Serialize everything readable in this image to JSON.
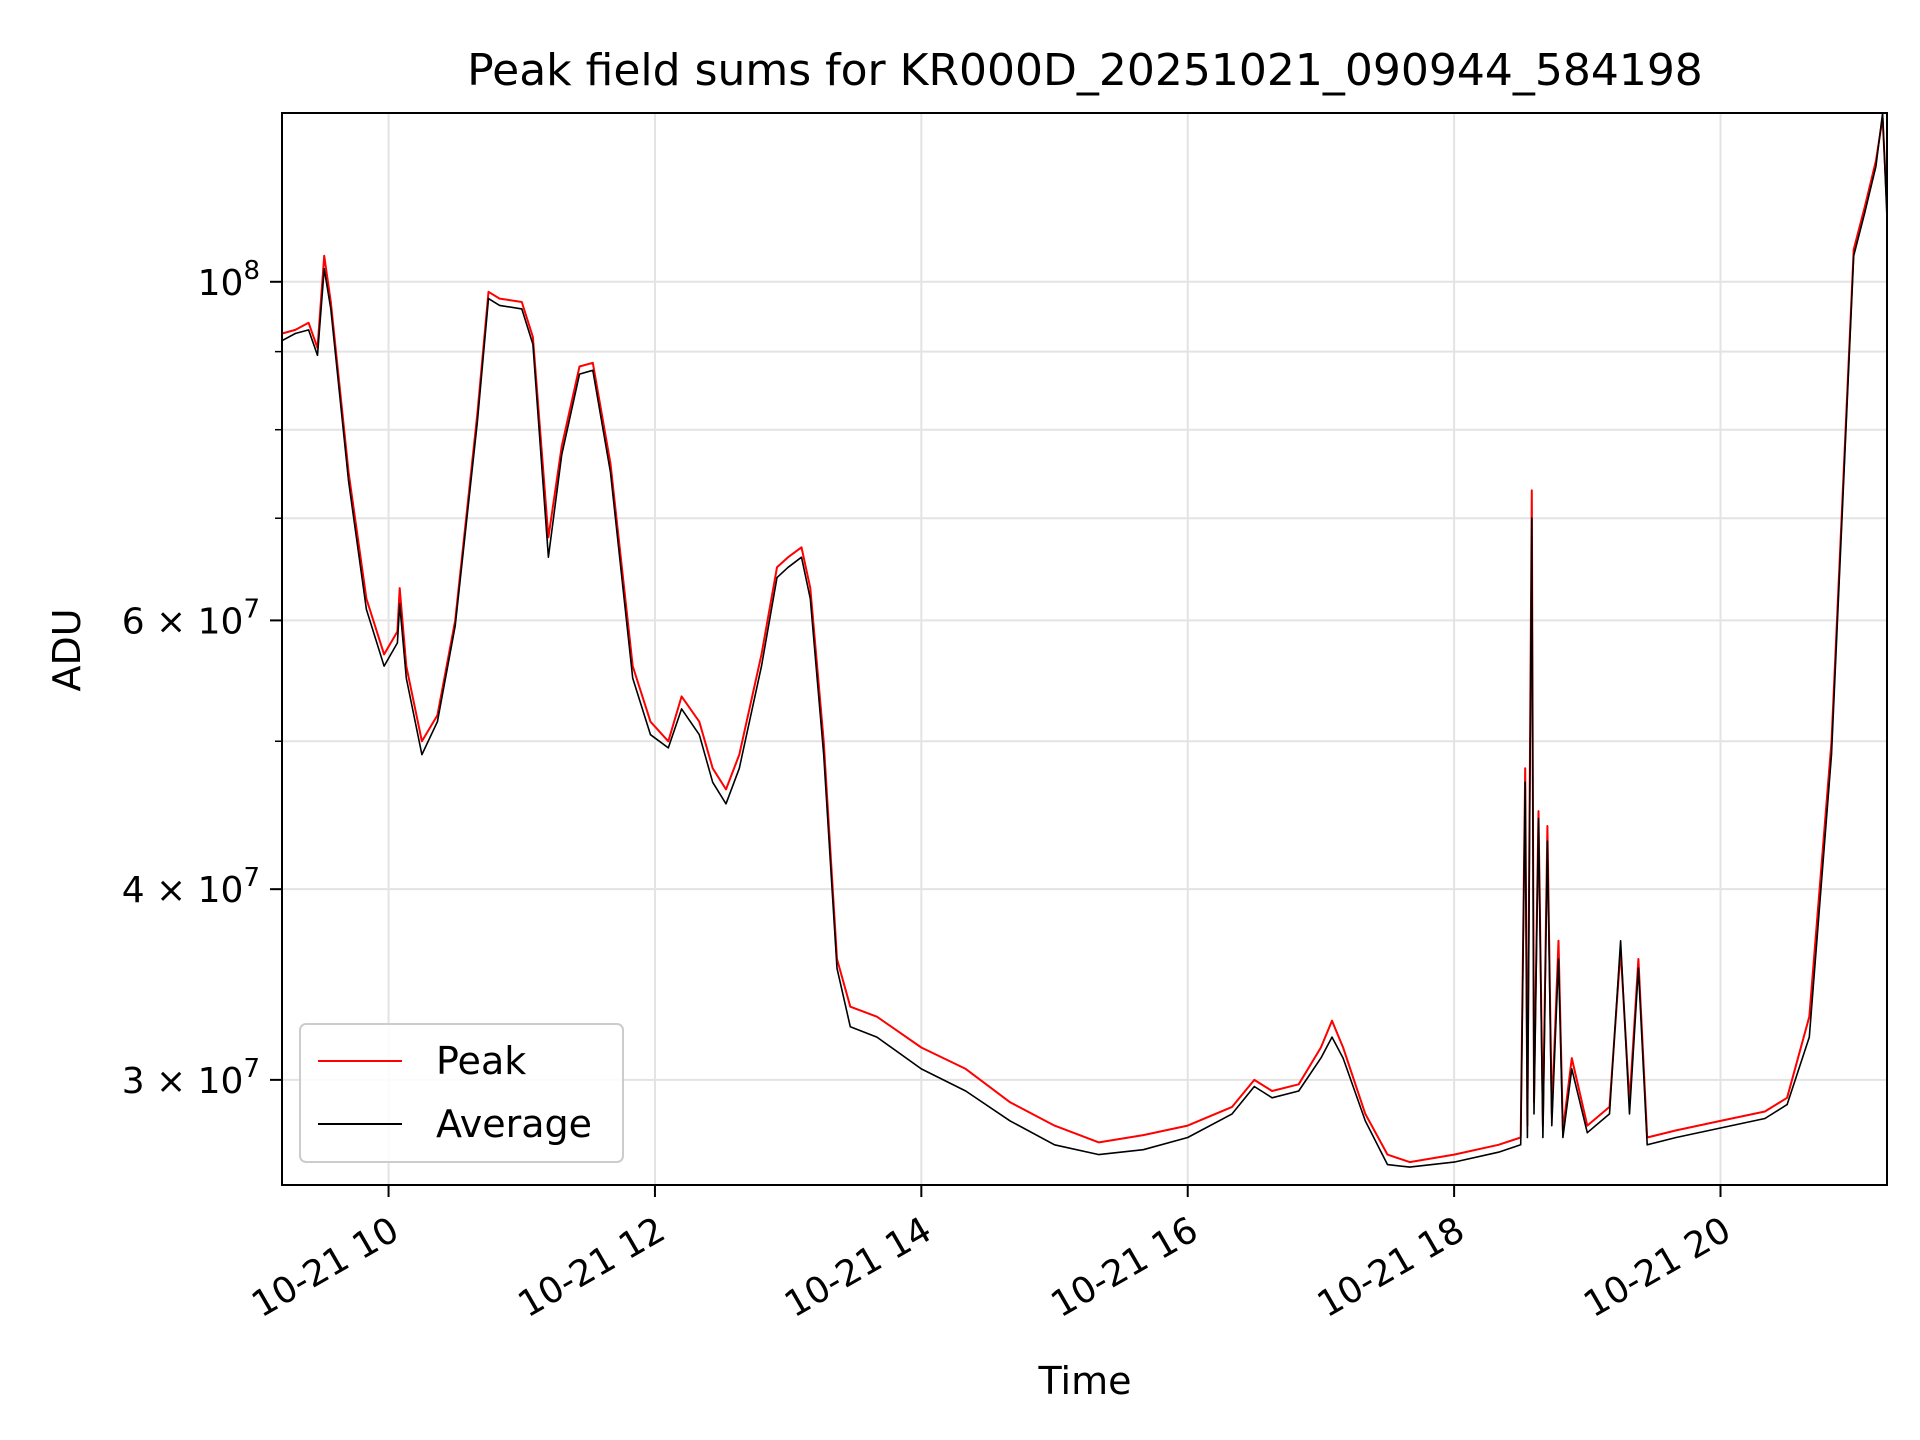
{
  "chart_data": {
    "type": "line",
    "title": "Peak field sums for KR000D_20251021_090944_584198",
    "xlabel": "Time",
    "ylabel": "ADU",
    "x_is_time": true,
    "xlim": [
      "2025-10-21T09:12",
      "2025-10-21T21:15"
    ],
    "ylim": [
      25600000,
      129000000
    ],
    "yscale": "log",
    "grid": true,
    "legend_position": "lower-left",
    "x_ticks": [
      {
        "value": "2025-10-21T10:00",
        "label": "10-21 10"
      },
      {
        "value": "2025-10-21T12:00",
        "label": "10-21 12"
      },
      {
        "value": "2025-10-21T14:00",
        "label": "10-21 14"
      },
      {
        "value": "2025-10-21T16:00",
        "label": "10-21 16"
      },
      {
        "value": "2025-10-21T18:00",
        "label": "10-21 18"
      },
      {
        "value": "2025-10-21T20:00",
        "label": "10-21 20"
      }
    ],
    "y_major_ticks": [
      {
        "value": 30000000,
        "base": "3",
        "exp": "7"
      },
      {
        "value": 40000000,
        "base": "4",
        "exp": "7"
      },
      {
        "value": 60000000,
        "base": "6",
        "exp": "7"
      },
      {
        "value": 100000000,
        "base": "",
        "exp": "8"
      }
    ],
    "y_minor_gridlines": [
      50000000,
      70000000,
      80000000,
      90000000
    ],
    "series": [
      {
        "name": "Peak",
        "color": "#ff0000",
        "points": [
          [
            "2025-10-21T09:12",
            92500000
          ],
          [
            "2025-10-21T09:18",
            93000000
          ],
          [
            "2025-10-21T09:24",
            94000000
          ],
          [
            "2025-10-21T09:28",
            90500000
          ],
          [
            "2025-10-21T09:31",
            104000000
          ],
          [
            "2025-10-21T09:34",
            97000000
          ],
          [
            "2025-10-21T09:42",
            75000000
          ],
          [
            "2025-10-21T09:50",
            62000000
          ],
          [
            "2025-10-21T09:58",
            57000000
          ],
          [
            "2025-10-21T10:04",
            59000000
          ],
          [
            "2025-10-21T10:05",
            63000000
          ],
          [
            "2025-10-21T10:08",
            56000000
          ],
          [
            "2025-10-21T10:15",
            50000000
          ],
          [
            "2025-10-21T10:22",
            52000000
          ],
          [
            "2025-10-21T10:30",
            60000000
          ],
          [
            "2025-10-21T10:40",
            82000000
          ],
          [
            "2025-10-21T10:45",
            98500000
          ],
          [
            "2025-10-21T10:50",
            97500000
          ],
          [
            "2025-10-21T11:00",
            97000000
          ],
          [
            "2025-10-21T11:05",
            92000000
          ],
          [
            "2025-10-21T11:12",
            68000000
          ],
          [
            "2025-10-21T11:18",
            78000000
          ],
          [
            "2025-10-21T11:26",
            88000000
          ],
          [
            "2025-10-21T11:32",
            88500000
          ],
          [
            "2025-10-21T11:40",
            76000000
          ],
          [
            "2025-10-21T11:50",
            56000000
          ],
          [
            "2025-10-21T11:58",
            51500000
          ],
          [
            "2025-10-21T12:06",
            50000000
          ],
          [
            "2025-10-21T12:12",
            53500000
          ],
          [
            "2025-10-21T12:20",
            51500000
          ],
          [
            "2025-10-21T12:26",
            48000000
          ],
          [
            "2025-10-21T12:32",
            46500000
          ],
          [
            "2025-10-21T12:38",
            49000000
          ],
          [
            "2025-10-21T12:48",
            57000000
          ],
          [
            "2025-10-21T12:55",
            65000000
          ],
          [
            "2025-10-21T13:00",
            66000000
          ],
          [
            "2025-10-21T13:06",
            67000000
          ],
          [
            "2025-10-21T13:10",
            63000000
          ],
          [
            "2025-10-21T13:16",
            50000000
          ],
          [
            "2025-10-21T13:22",
            36000000
          ],
          [
            "2025-10-21T13:28",
            33500000
          ],
          [
            "2025-10-21T13:40",
            33000000
          ],
          [
            "2025-10-21T14:00",
            31500000
          ],
          [
            "2025-10-21T14:20",
            30500000
          ],
          [
            "2025-10-21T14:40",
            29000000
          ],
          [
            "2025-10-21T15:00",
            28000000
          ],
          [
            "2025-10-21T15:20",
            27300000
          ],
          [
            "2025-10-21T15:40",
            27600000
          ],
          [
            "2025-10-21T16:00",
            28000000
          ],
          [
            "2025-10-21T16:20",
            28800000
          ],
          [
            "2025-10-21T16:30",
            30000000
          ],
          [
            "2025-10-21T16:38",
            29500000
          ],
          [
            "2025-10-21T16:50",
            29800000
          ],
          [
            "2025-10-21T17:00",
            31500000
          ],
          [
            "2025-10-21T17:05",
            32800000
          ],
          [
            "2025-10-21T17:10",
            31500000
          ],
          [
            "2025-10-21T17:20",
            28500000
          ],
          [
            "2025-10-21T17:30",
            26800000
          ],
          [
            "2025-10-21T17:40",
            26500000
          ],
          [
            "2025-10-21T18:00",
            26800000
          ],
          [
            "2025-10-21T18:20",
            27200000
          ],
          [
            "2025-10-21T18:30",
            27500000
          ],
          [
            "2025-10-21T18:32",
            48000000
          ],
          [
            "2025-10-21T18:33",
            28000000
          ],
          [
            "2025-10-21T18:35",
            73000000
          ],
          [
            "2025-10-21T18:36",
            29000000
          ],
          [
            "2025-10-21T18:38",
            45000000
          ],
          [
            "2025-10-21T18:40",
            28000000
          ],
          [
            "2025-10-21T18:42",
            44000000
          ],
          [
            "2025-10-21T18:44",
            28500000
          ],
          [
            "2025-10-21T18:47",
            37000000
          ],
          [
            "2025-10-21T18:49",
            27800000
          ],
          [
            "2025-10-21T18:53",
            31000000
          ],
          [
            "2025-10-21T19:00",
            28000000
          ],
          [
            "2025-10-21T19:10",
            28800000
          ],
          [
            "2025-10-21T19:15",
            36500000
          ],
          [
            "2025-10-21T19:19",
            29000000
          ],
          [
            "2025-10-21T19:23",
            36000000
          ],
          [
            "2025-10-21T19:27",
            27500000
          ],
          [
            "2025-10-21T19:40",
            27800000
          ],
          [
            "2025-10-21T20:00",
            28200000
          ],
          [
            "2025-10-21T20:20",
            28600000
          ],
          [
            "2025-10-21T20:30",
            29200000
          ],
          [
            "2025-10-21T20:40",
            33000000
          ],
          [
            "2025-10-21T20:50",
            50000000
          ],
          [
            "2025-10-21T21:00",
            105000000
          ],
          [
            "2025-10-21T21:05",
            112000000
          ],
          [
            "2025-10-21T21:10",
            120000000
          ],
          [
            "2025-10-21T21:13",
            128000000
          ],
          [
            "2025-10-21T21:15",
            112000000
          ]
        ]
      },
      {
        "name": "Average",
        "color": "#000000",
        "points": [
          [
            "2025-10-21T09:12",
            91500000
          ],
          [
            "2025-10-21T09:18",
            92500000
          ],
          [
            "2025-10-21T09:24",
            93000000
          ],
          [
            "2025-10-21T09:28",
            89500000
          ],
          [
            "2025-10-21T09:31",
            102000000
          ],
          [
            "2025-10-21T09:34",
            96000000
          ],
          [
            "2025-10-21T09:42",
            74000000
          ],
          [
            "2025-10-21T09:50",
            61000000
          ],
          [
            "2025-10-21T09:58",
            56000000
          ],
          [
            "2025-10-21T10:04",
            58000000
          ],
          [
            "2025-10-21T10:05",
            61500000
          ],
          [
            "2025-10-21T10:08",
            55000000
          ],
          [
            "2025-10-21T10:15",
            49000000
          ],
          [
            "2025-10-21T10:22",
            51500000
          ],
          [
            "2025-10-21T10:30",
            59500000
          ],
          [
            "2025-10-21T10:40",
            81000000
          ],
          [
            "2025-10-21T10:45",
            97500000
          ],
          [
            "2025-10-21T10:50",
            96500000
          ],
          [
            "2025-10-21T11:00",
            96000000
          ],
          [
            "2025-10-21T11:05",
            91000000
          ],
          [
            "2025-10-21T11:12",
            66000000
          ],
          [
            "2025-10-21T11:18",
            77000000
          ],
          [
            "2025-10-21T11:26",
            87000000
          ],
          [
            "2025-10-21T11:32",
            87500000
          ],
          [
            "2025-10-21T11:40",
            75000000
          ],
          [
            "2025-10-21T11:50",
            55000000
          ],
          [
            "2025-10-21T11:58",
            50500000
          ],
          [
            "2025-10-21T12:06",
            49500000
          ],
          [
            "2025-10-21T12:12",
            52500000
          ],
          [
            "2025-10-21T12:20",
            50500000
          ],
          [
            "2025-10-21T12:26",
            47000000
          ],
          [
            "2025-10-21T12:32",
            45500000
          ],
          [
            "2025-10-21T12:38",
            48000000
          ],
          [
            "2025-10-21T12:48",
            56000000
          ],
          [
            "2025-10-21T12:55",
            64000000
          ],
          [
            "2025-10-21T13:00",
            65000000
          ],
          [
            "2025-10-21T13:06",
            66000000
          ],
          [
            "2025-10-21T13:10",
            62000000
          ],
          [
            "2025-10-21T13:16",
            49000000
          ],
          [
            "2025-10-21T13:22",
            35500000
          ],
          [
            "2025-10-21T13:28",
            32500000
          ],
          [
            "2025-10-21T13:40",
            32000000
          ],
          [
            "2025-10-21T14:00",
            30500000
          ],
          [
            "2025-10-21T14:20",
            29500000
          ],
          [
            "2025-10-21T14:40",
            28200000
          ],
          [
            "2025-10-21T15:00",
            27200000
          ],
          [
            "2025-10-21T15:20",
            26800000
          ],
          [
            "2025-10-21T15:40",
            27000000
          ],
          [
            "2025-10-21T16:00",
            27500000
          ],
          [
            "2025-10-21T16:20",
            28500000
          ],
          [
            "2025-10-21T16:30",
            29700000
          ],
          [
            "2025-10-21T16:38",
            29200000
          ],
          [
            "2025-10-21T16:50",
            29500000
          ],
          [
            "2025-10-21T17:00",
            31000000
          ],
          [
            "2025-10-21T17:05",
            32000000
          ],
          [
            "2025-10-21T17:10",
            31000000
          ],
          [
            "2025-10-21T17:20",
            28200000
          ],
          [
            "2025-10-21T17:30",
            26400000
          ],
          [
            "2025-10-21T17:40",
            26300000
          ],
          [
            "2025-10-21T18:00",
            26500000
          ],
          [
            "2025-10-21T18:20",
            26900000
          ],
          [
            "2025-10-21T18:30",
            27200000
          ],
          [
            "2025-10-21T18:32",
            47000000
          ],
          [
            "2025-10-21T18:33",
            27500000
          ],
          [
            "2025-10-21T18:35",
            70000000
          ],
          [
            "2025-10-21T18:36",
            28500000
          ],
          [
            "2025-10-21T18:38",
            44500000
          ],
          [
            "2025-10-21T18:40",
            27500000
          ],
          [
            "2025-10-21T18:42",
            43000000
          ],
          [
            "2025-10-21T18:44",
            28000000
          ],
          [
            "2025-10-21T18:47",
            36000000
          ],
          [
            "2025-10-21T18:49",
            27500000
          ],
          [
            "2025-10-21T18:53",
            30500000
          ],
          [
            "2025-10-21T19:00",
            27700000
          ],
          [
            "2025-10-21T19:10",
            28500000
          ],
          [
            "2025-10-21T19:15",
            37000000
          ],
          [
            "2025-10-21T19:19",
            28500000
          ],
          [
            "2025-10-21T19:23",
            35500000
          ],
          [
            "2025-10-21T19:27",
            27200000
          ],
          [
            "2025-10-21T19:40",
            27500000
          ],
          [
            "2025-10-21T20:00",
            27900000
          ],
          [
            "2025-10-21T20:20",
            28300000
          ],
          [
            "2025-10-21T20:30",
            28900000
          ],
          [
            "2025-10-21T20:40",
            32000000
          ],
          [
            "2025-10-21T20:50",
            49000000
          ],
          [
            "2025-10-21T21:00",
            104000000
          ],
          [
            "2025-10-21T21:05",
            111000000
          ],
          [
            "2025-10-21T21:10",
            119000000
          ],
          [
            "2025-10-21T21:13",
            129000000
          ],
          [
            "2025-10-21T21:15",
            110000000
          ]
        ]
      }
    ],
    "legend": [
      {
        "label": "Peak",
        "color": "#ff0000"
      },
      {
        "label": "Average",
        "color": "#000000"
      }
    ]
  }
}
